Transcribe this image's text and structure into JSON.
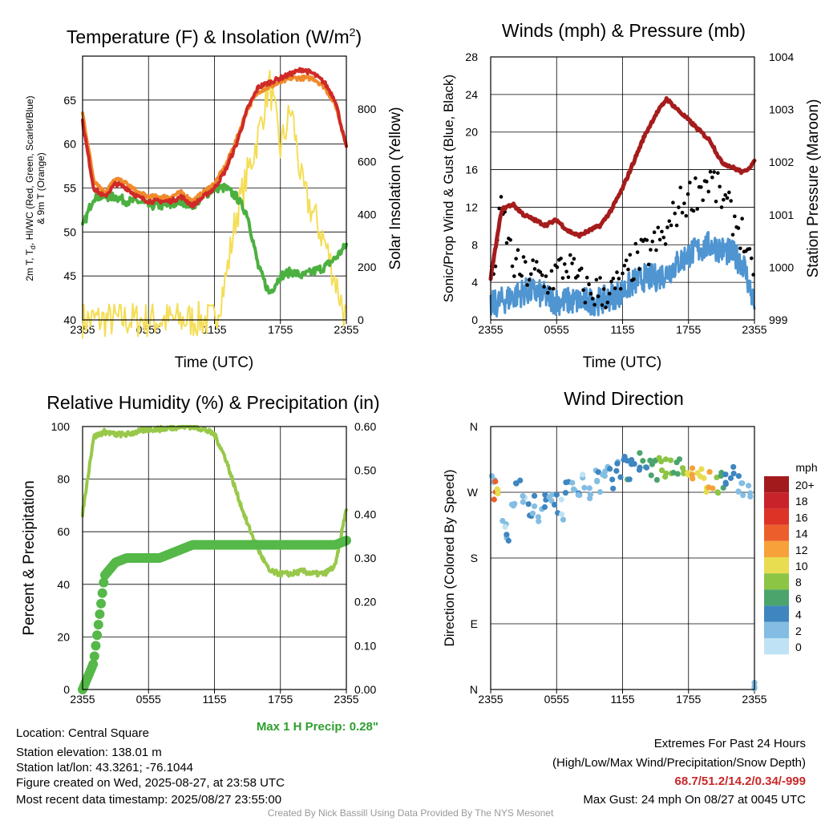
{
  "panels": {
    "temperature": {
      "title": "Temperature (F) & Insolation (W/m",
      "title_sup": "2",
      "title_close": ")",
      "ylabel_line1": "2m T, T",
      "ylabel_sub": "d",
      "ylabel_line1b": ", HI/WC (Red, Green, Scarlet/Blue)",
      "ylabel_line2": "& 9m T (Orange)",
      "y2label": "Solar Insolation (Yellow)",
      "xlabel": "Time (UTC)"
    },
    "winds": {
      "title": "Winds (mph) & Pressure (mb)",
      "ylabel": "Sonic/Prop Wind & Gust (Blue, Black)",
      "y2label": "Station Pressure (Maroon)",
      "xlabel": "Time (UTC)"
    },
    "humidity": {
      "title": "Relative Humidity (%) & Precipitation (in)",
      "ylabel": "Percent & Precipitation",
      "max_precip": "Max 1 H Precip: 0.28\""
    },
    "direction": {
      "title": "Wind Direction",
      "ylabel": "Direction (Colored By Speed)",
      "legend_title": "mph",
      "legend_labels": [
        "20+",
        "18",
        "16",
        "14",
        "12",
        "10",
        "8",
        "6",
        "4",
        "2",
        "0"
      ],
      "legend_colors": [
        "#a31a1c",
        "#c8222a",
        "#dd3327",
        "#ec5f2c",
        "#f6a13a",
        "#e8dc50",
        "#8cc544",
        "#4aa56d",
        "#3e86c0",
        "#83bde3",
        "#bfe3f5"
      ]
    }
  },
  "x_ticks": [
    "2355",
    "0555",
    "1155",
    "1755",
    "2355"
  ],
  "footer": {
    "location": "Location: Central Square",
    "elevation": "Station elevation: 138.01 m",
    "latlon": "Station lat/lon: 43.3261; -76.1044",
    "created": "Figure created on Wed, 2025-08-27, at 23:58 UTC",
    "recent": "Most recent data timestamp: 2025/08/27 23:55:00",
    "extremes_title": "Extremes For Past 24 Hours",
    "extremes_fields": "(High/Low/Max Wind/Precipitation/Snow Depth)",
    "extremes_values": "68.7/51.2/14.2/0.34/-999",
    "max_gust": "Max Gust: 24 mph On 08/27 at 0045 UTC",
    "credit": "Created By Nick Bassill Using Data Provided By The NYS Mesonet"
  },
  "colors": {
    "temp": "#cf2a27",
    "nine_m": "#f08a2a",
    "heat_index": "#b22222",
    "dewpoint": "#4bb040",
    "solar": "#f4de57",
    "wind": "#4f95d1",
    "gust": "#000000",
    "pressure": "#a51c1c",
    "rh": "#98c84a",
    "precip": "#55b848",
    "max_precip_text": "#2e9e2e",
    "extremes_text": "#c8282a"
  },
  "chart_data": [
    {
      "type": "line",
      "title": "Temperature (F) & Insolation (W/m2)",
      "xlabel": "Time (UTC)",
      "x_hours_since_2355": [
        0,
        1,
        2,
        3,
        4,
        5,
        6,
        7,
        8,
        9,
        10,
        11,
        12,
        13,
        14,
        15,
        16,
        17,
        18,
        19,
        20,
        21,
        22,
        23,
        24
      ],
      "ylim": [
        40,
        70
      ],
      "y2lim": [
        0,
        1000
      ],
      "yticks": [
        40,
        45,
        50,
        55,
        60,
        65
      ],
      "y2ticks": [
        0,
        200,
        400,
        600,
        800
      ],
      "series": [
        {
          "name": "2m T",
          "values": [
            62.5,
            55,
            54,
            55.5,
            55,
            54,
            53.5,
            53.5,
            53.5,
            54,
            53,
            54,
            55,
            57,
            60,
            64,
            66.5,
            67,
            67.5,
            68,
            68.5,
            68,
            67,
            65,
            59.5
          ]
        },
        {
          "name": "9m T",
          "values": [
            63.5,
            56,
            54.5,
            56,
            55.5,
            54.5,
            54,
            54,
            54,
            54.5,
            53.5,
            54.5,
            55.5,
            57.5,
            60.5,
            64,
            66,
            66.5,
            67,
            67.5,
            67.5,
            67.5,
            66.5,
            64.5,
            60
          ]
        },
        {
          "name": "Td",
          "values": [
            50.5,
            54,
            54,
            54,
            53.5,
            53.5,
            53,
            53,
            53,
            53.5,
            53,
            54,
            55,
            55,
            54,
            52,
            46,
            43,
            45,
            45.5,
            45,
            45.5,
            46,
            47,
            48.5
          ]
        },
        {
          "name": "Solar Insolation",
          "values": [
            0,
            0,
            0,
            0,
            0,
            0,
            0,
            0,
            0,
            0,
            0,
            0,
            0,
            150,
            400,
            550,
            700,
            900,
            650,
            800,
            500,
            400,
            300,
            150,
            0
          ]
        }
      ]
    },
    {
      "type": "line",
      "title": "Winds (mph) & Pressure (mb)",
      "xlabel": "Time (UTC)",
      "ylim": [
        0,
        28
      ],
      "y2lim": [
        999,
        1004
      ],
      "yticks": [
        0,
        4,
        8,
        12,
        16,
        20,
        24,
        28
      ],
      "y2ticks": [
        999,
        1000,
        1001,
        1002,
        1003,
        1004
      ],
      "series": [
        {
          "name": "Wind",
          "values": [
            1.5,
            2,
            2.5,
            3,
            3,
            2.5,
            2,
            2,
            2,
            2,
            2,
            2.5,
            3,
            4,
            4.5,
            4.5,
            5,
            6,
            7,
            7.5,
            8,
            7.5,
            7,
            6,
            1.5
          ]
        },
        {
          "name": "Gust",
          "values": [
            3,
            12,
            6,
            5,
            5,
            4,
            5,
            6,
            4,
            3,
            3,
            3,
            4,
            6,
            7,
            8,
            9,
            12,
            13,
            14,
            15,
            13,
            11,
            9,
            3
          ]
        },
        {
          "name": "Station Pressure",
          "values": [
            999.8,
            1001.1,
            1001.2,
            1001.0,
            1000.9,
            1000.8,
            1000.9,
            1000.7,
            1000.6,
            1000.7,
            1000.8,
            1001.1,
            1001.5,
            1002.0,
            1002.5,
            1002.9,
            1003.2,
            1003.0,
            1002.8,
            1002.6,
            1002.4,
            1002.0,
            1001.9,
            1001.8,
            1002.0
          ]
        }
      ]
    },
    {
      "type": "line",
      "title": "Relative Humidity (%) & Precipitation (in)",
      "ylim": [
        0,
        100
      ],
      "y2lim": [
        0,
        0.6
      ],
      "yticks": [
        0,
        20,
        40,
        60,
        80,
        100
      ],
      "y2ticks": [
        0.0,
        0.1,
        0.2,
        0.3,
        0.4,
        0.5,
        0.6
      ],
      "series": [
        {
          "name": "RH",
          "values": [
            67,
            96,
            98,
            97,
            97,
            98,
            99,
            99,
            99.5,
            100,
            100,
            99,
            97,
            88,
            75,
            63,
            53,
            45,
            44,
            44,
            45,
            44,
            44,
            47,
            69
          ]
        },
        {
          "name": "Precipitation",
          "values": [
            0,
            0.06,
            0.26,
            0.29,
            0.3,
            0.3,
            0.3,
            0.3,
            0.31,
            0.32,
            0.33,
            0.33,
            0.33,
            0.33,
            0.33,
            0.33,
            0.33,
            0.33,
            0.33,
            0.33,
            0.33,
            0.33,
            0.33,
            0.33,
            0.34
          ]
        }
      ]
    },
    {
      "type": "scatter",
      "title": "Wind Direction",
      "ylabel": "Direction (Colored By Speed)",
      "ytick_labels": [
        "N",
        "E",
        "S",
        "W",
        "N"
      ],
      "ylim_deg": [
        0,
        360
      ],
      "points": [
        {
          "x": 0.2,
          "dir": 290,
          "spd": 2
        },
        {
          "x": 0.5,
          "dir": 275,
          "spd": 14
        },
        {
          "x": 0.8,
          "dir": 270,
          "spd": 10
        },
        {
          "x": 1.2,
          "dir": 230,
          "spd": 1
        },
        {
          "x": 1.6,
          "dir": 200,
          "spd": 3
        },
        {
          "x": 2.0,
          "dir": 255,
          "spd": 2
        },
        {
          "x": 2.5,
          "dir": 285,
          "spd": 4
        },
        {
          "x": 3.0,
          "dir": 260,
          "spd": 1
        },
        {
          "x": 3.5,
          "dir": 240,
          "spd": 4
        },
        {
          "x": 4.0,
          "dir": 255,
          "spd": 3
        },
        {
          "x": 4.5,
          "dir": 240,
          "spd": 2
        },
        {
          "x": 5.0,
          "dir": 260,
          "spd": 4
        },
        {
          "x": 5.5,
          "dir": 270,
          "spd": 2
        },
        {
          "x": 6.0,
          "dir": 255,
          "spd": 4
        },
        {
          "x": 6.5,
          "dir": 245,
          "spd": 1
        },
        {
          "x": 7.0,
          "dir": 280,
          "spd": 4
        },
        {
          "x": 7.5,
          "dir": 270,
          "spd": 2
        },
        {
          "x": 8.0,
          "dir": 260,
          "spd": 3
        },
        {
          "x": 8.5,
          "dir": 285,
          "spd": 1
        },
        {
          "x": 9.0,
          "dir": 275,
          "spd": 2
        },
        {
          "x": 9.5,
          "dir": 290,
          "spd": 2
        },
        {
          "x": 10.0,
          "dir": 285,
          "spd": 3
        },
        {
          "x": 10.5,
          "dir": 295,
          "spd": 2
        },
        {
          "x": 11.0,
          "dir": 290,
          "spd": 4
        },
        {
          "x": 11.5,
          "dir": 300,
          "spd": 3
        },
        {
          "x": 12.0,
          "dir": 305,
          "spd": 4
        },
        {
          "x": 12.5,
          "dir": 300,
          "spd": 5
        },
        {
          "x": 13.0,
          "dir": 310,
          "spd": 4
        },
        {
          "x": 13.5,
          "dir": 315,
          "spd": 5
        },
        {
          "x": 14.0,
          "dir": 310,
          "spd": 5
        },
        {
          "x": 14.5,
          "dir": 305,
          "spd": 6
        },
        {
          "x": 15.0,
          "dir": 300,
          "spd": 7
        },
        {
          "x": 15.5,
          "dir": 310,
          "spd": 8
        },
        {
          "x": 16.0,
          "dir": 305,
          "spd": 8
        },
        {
          "x": 16.5,
          "dir": 300,
          "spd": 7
        },
        {
          "x": 17.0,
          "dir": 310,
          "spd": 6
        },
        {
          "x": 17.5,
          "dir": 300,
          "spd": 8
        },
        {
          "x": 18.0,
          "dir": 295,
          "spd": 10
        },
        {
          "x": 18.5,
          "dir": 295,
          "spd": 12
        },
        {
          "x": 19.0,
          "dir": 290,
          "spd": 11
        },
        {
          "x": 19.5,
          "dir": 285,
          "spd": 9
        },
        {
          "x": 20.0,
          "dir": 290,
          "spd": 12
        },
        {
          "x": 20.5,
          "dir": 280,
          "spd": 8
        },
        {
          "x": 21.0,
          "dir": 285,
          "spd": 6
        },
        {
          "x": 21.5,
          "dir": 290,
          "spd": 4
        },
        {
          "x": 22.0,
          "dir": 290,
          "spd": 4
        },
        {
          "x": 22.5,
          "dir": 285,
          "spd": 3
        },
        {
          "x": 23.0,
          "dir": 280,
          "spd": 2
        },
        {
          "x": 23.5,
          "dir": 265,
          "spd": 1
        },
        {
          "x": 23.9,
          "dir": 15,
          "spd": 2
        }
      ]
    }
  ]
}
